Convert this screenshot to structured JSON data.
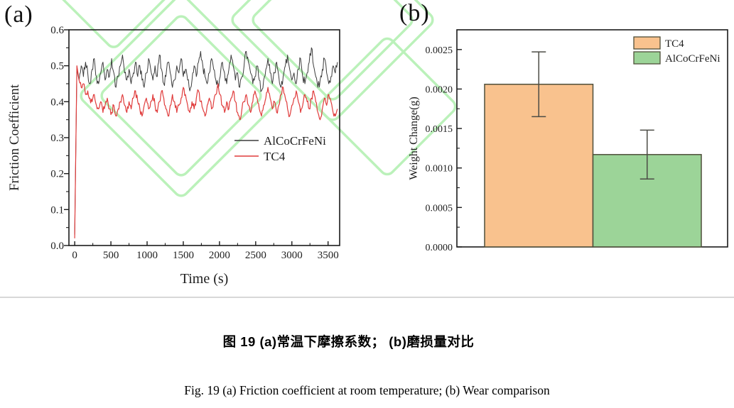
{
  "page": {
    "background": "#ffffff",
    "divider_color": "#d8d8d8"
  },
  "watermark": {
    "name": "diamond-watermark",
    "color": "#b0efae"
  },
  "panels": {
    "a": {
      "label": "(a)"
    },
    "b": {
      "label": "(b)"
    }
  },
  "captions": {
    "chinese": "图 19  (a)常温下摩擦系数； (b)磨损量对比",
    "english": "Fig. 19 (a) Friction coefficient at room temperature; (b) Wear comparison"
  },
  "chart_data": [
    {
      "id": "friction-coefficient",
      "type": "line",
      "title": "",
      "xlabel": "Time (s)",
      "ylabel": "Friction Coefficient",
      "xlim": [
        -80,
        3660
      ],
      "ylim": [
        0,
        0.6
      ],
      "xticks": [
        0,
        500,
        1000,
        1500,
        2000,
        2500,
        3000,
        3500
      ],
      "xtick_labels": [
        "0",
        "500",
        "1000",
        "1500",
        "2000",
        "2500",
        "3000",
        "3500"
      ],
      "yticks": [
        0.0,
        0.1,
        0.2,
        0.3,
        0.4,
        0.5,
        0.6
      ],
      "ytick_labels": [
        "0.0",
        "0.1",
        "0.2",
        "0.3",
        "0.4",
        "0.5",
        "0.6"
      ],
      "x_minor_step": 250,
      "y_minor_step": 0.05,
      "grid": false,
      "legend_position": "right-middle",
      "axis_color": "#1a1a1a",
      "t_start": 0,
      "t_step": 30,
      "series": [
        {
          "name": "AlCoCrFeNi",
          "color": "#3c3c3c",
          "noise": 0.013,
          "values": [
            0.03,
            0.49,
            0.46,
            0.5,
            0.47,
            0.51,
            0.48,
            0.45,
            0.49,
            0.52,
            0.47,
            0.45,
            0.48,
            0.51,
            0.46,
            0.49,
            0.47,
            0.52,
            0.48,
            0.44,
            0.47,
            0.5,
            0.53,
            0.48,
            0.46,
            0.49,
            0.45,
            0.48,
            0.51,
            0.47,
            0.5,
            0.46,
            0.44,
            0.48,
            0.52,
            0.49,
            0.46,
            0.5,
            0.47,
            0.53,
            0.49,
            0.45,
            0.47,
            0.51,
            0.48,
            0.44,
            0.46,
            0.5,
            0.48,
            0.52,
            0.47,
            0.49,
            0.46,
            0.43,
            0.46,
            0.5,
            0.47,
            0.51,
            0.54,
            0.5,
            0.47,
            0.45,
            0.48,
            0.52,
            0.49,
            0.46,
            0.44,
            0.47,
            0.51,
            0.48,
            0.45,
            0.49,
            0.53,
            0.5,
            0.46,
            0.48,
            0.44,
            0.47,
            0.5,
            0.54,
            0.51,
            0.48,
            0.45,
            0.47,
            0.5,
            0.46,
            0.43,
            0.46,
            0.49,
            0.52,
            0.48,
            0.45,
            0.48,
            0.51,
            0.47,
            0.44,
            0.47,
            0.5,
            0.53,
            0.49,
            0.46,
            0.48,
            0.45,
            0.49,
            0.52,
            0.47,
            0.45,
            0.48,
            0.51,
            0.55,
            0.5,
            0.47,
            0.44,
            0.46,
            0.49,
            0.52,
            0.48,
            0.45,
            0.47,
            0.5,
            0.48,
            0.51
          ]
        },
        {
          "name": "TC4",
          "color": "#e03c3c",
          "noise": 0.01,
          "values": [
            0.02,
            0.5,
            0.46,
            0.44,
            0.45,
            0.42,
            0.43,
            0.41,
            0.4,
            0.42,
            0.39,
            0.38,
            0.4,
            0.37,
            0.39,
            0.41,
            0.38,
            0.37,
            0.39,
            0.36,
            0.38,
            0.4,
            0.42,
            0.39,
            0.37,
            0.4,
            0.38,
            0.41,
            0.43,
            0.4,
            0.38,
            0.36,
            0.39,
            0.41,
            0.38,
            0.4,
            0.42,
            0.39,
            0.37,
            0.4,
            0.43,
            0.41,
            0.38,
            0.36,
            0.39,
            0.42,
            0.4,
            0.37,
            0.39,
            0.41,
            0.44,
            0.42,
            0.39,
            0.37,
            0.4,
            0.38,
            0.41,
            0.43,
            0.4,
            0.38,
            0.36,
            0.39,
            0.41,
            0.38,
            0.4,
            0.42,
            0.45,
            0.42,
            0.39,
            0.37,
            0.4,
            0.38,
            0.41,
            0.43,
            0.4,
            0.37,
            0.35,
            0.38,
            0.4,
            0.42,
            0.39,
            0.37,
            0.4,
            0.43,
            0.41,
            0.38,
            0.36,
            0.39,
            0.41,
            0.44,
            0.41,
            0.38,
            0.4,
            0.37,
            0.39,
            0.42,
            0.44,
            0.41,
            0.38,
            0.36,
            0.39,
            0.41,
            0.43,
            0.4,
            0.37,
            0.39,
            0.42,
            0.4,
            0.38,
            0.41,
            0.43,
            0.4,
            0.37,
            0.35,
            0.38,
            0.41,
            0.39,
            0.42,
            0.4,
            0.37,
            0.36,
            0.38
          ]
        }
      ]
    },
    {
      "id": "wear-comparison",
      "type": "bar",
      "title": "",
      "xlabel": "",
      "ylabel": "Weight Change(g)",
      "ylim": [
        0,
        0.00275
      ],
      "yticks": [
        0.0,
        0.0005,
        0.001,
        0.0015,
        0.002,
        0.0025
      ],
      "ytick_labels": [
        "0.0000",
        "0.0005",
        "0.0010",
        "0.0015",
        "0.0020",
        "0.0025"
      ],
      "y_minor_step": 0.00025,
      "grid": false,
      "legend_position": "top-right",
      "axis_color": "#1a1a1a",
      "categories": [
        "TC4",
        "AlCoCrFeNi"
      ],
      "values": [
        0.00206,
        0.00117
      ],
      "errors": [
        0.00041,
        0.00031
      ],
      "bar_colors": [
        "#F9C28E",
        "#9CD498"
      ],
      "bar_border": "#4f4f3a",
      "error_color": "#4c4c46"
    }
  ]
}
